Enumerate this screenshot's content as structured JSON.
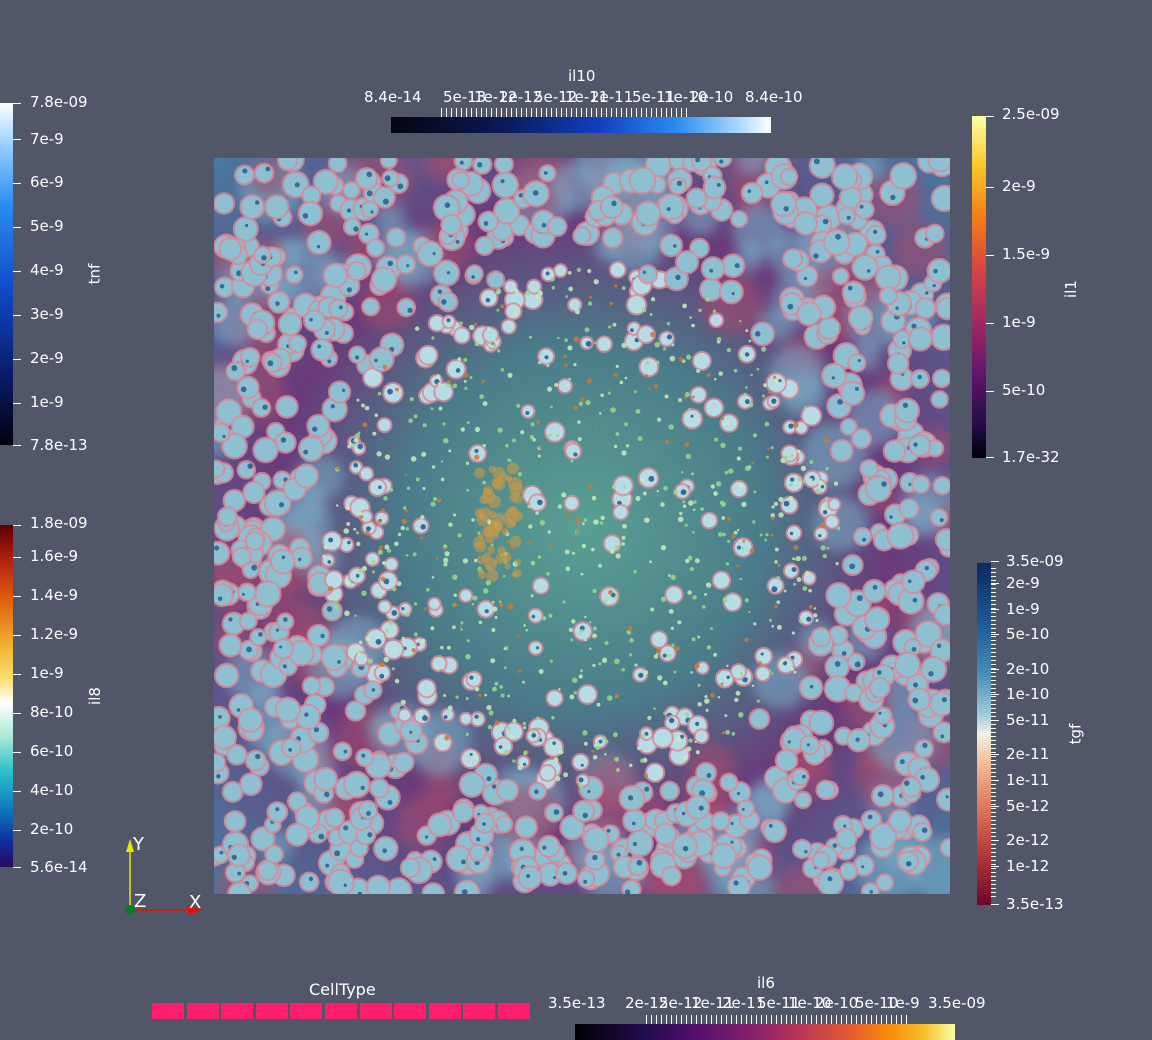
{
  "colorbars": {
    "il10": {
      "title": "il10",
      "labels": [
        "8.4e-14",
        "5e-13",
        "1e-12",
        "2e-12",
        "5e-12",
        "1e-11",
        "2e-11",
        "5e-11",
        "1e-10",
        "2e-10",
        "8.4e-10"
      ],
      "colormap": "Blue Orange (light)"
    },
    "tnf": {
      "title": "tnf",
      "labels": [
        "7.8e-09",
        "7e-9",
        "6e-9",
        "5e-9",
        "4e-9",
        "3e-9",
        "2e-9",
        "1e-9",
        "7.8e-13"
      ]
    },
    "il1": {
      "title": "il1",
      "labels": [
        "2.5e-09",
        "2e-9",
        "1.5e-9",
        "1e-9",
        "5e-10",
        "1.7e-32"
      ]
    },
    "il8": {
      "title": "il8",
      "labels": [
        "1.8e-09",
        "1.6e-9",
        "1.4e-9",
        "1.2e-9",
        "1e-9",
        "8e-10",
        "6e-10",
        "4e-10",
        "2e-10",
        "5.6e-14"
      ]
    },
    "tgf": {
      "title": "tgf",
      "labels": [
        "3.5e-09",
        "2e-9",
        "1e-9",
        "5e-10",
        "2e-10",
        "1e-10",
        "5e-11",
        "2e-11",
        "1e-11",
        "5e-12",
        "2e-12",
        "1e-12",
        "3.5e-13"
      ]
    },
    "il6": {
      "title": "il6",
      "labels": [
        "3.5e-13",
        "2e-12",
        "5e-12",
        "1e-11",
        "2e-11",
        "5e-11",
        "1e-10",
        "2e-10",
        "5e-10",
        "1e-9",
        "3.5e-09"
      ]
    }
  },
  "celltype": {
    "title": "CellType",
    "swatch_color": "#ff1e6e",
    "count": 11
  },
  "axes": {
    "y": "Y",
    "z": "Z",
    "x": "X"
  },
  "colors": {
    "background": "#525669",
    "axis_y": "#e8e800",
    "axis_x": "#e01010",
    "axis_z": "#0a7a2a"
  }
}
